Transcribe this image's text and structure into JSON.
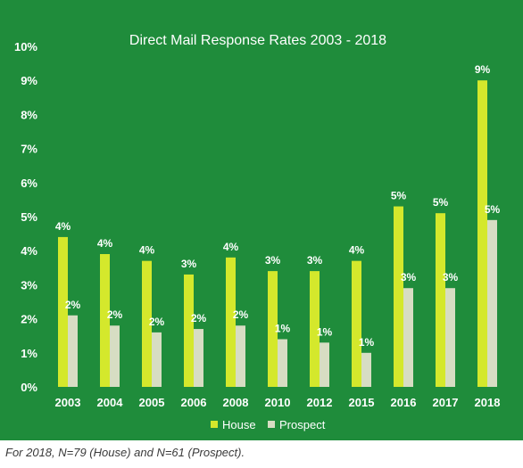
{
  "footnote": "For 2018, N=79 (House) and N=61 (Prospect).",
  "colors": {
    "background": "#1f8c3b",
    "house": "#d4e82c",
    "prospect": "#d7ddc3",
    "text": "#ffffff"
  },
  "chart_data": {
    "type": "bar",
    "title": "Direct Mail Response Rates 2003 - 2018",
    "xlabel": "",
    "ylabel": "",
    "ylim": [
      0,
      10
    ],
    "yticks": [
      "0%",
      "1%",
      "2%",
      "3%",
      "4%",
      "5%",
      "6%",
      "7%",
      "8%",
      "9%",
      "10%"
    ],
    "grid": false,
    "legend_position": "bottom",
    "categories": [
      "2003",
      "2004",
      "2005",
      "2006",
      "2008",
      "2010",
      "2012",
      "2015",
      "2016",
      "2017",
      "2018"
    ],
    "series": [
      {
        "name": "House",
        "color": "#d4e82c",
        "values": [
          4.4,
          3.9,
          3.7,
          3.3,
          3.8,
          3.4,
          3.4,
          3.7,
          5.3,
          5.1,
          9.0
        ],
        "labels": [
          "4%",
          "4%",
          "4%",
          "3%",
          "4%",
          "3%",
          "3%",
          "4%",
          "5%",
          "5%",
          "9%"
        ]
      },
      {
        "name": "Prospect",
        "color": "#d7ddc3",
        "values": [
          2.1,
          1.8,
          1.6,
          1.7,
          1.8,
          1.4,
          1.3,
          1.0,
          2.9,
          2.9,
          4.9
        ],
        "labels": [
          "2%",
          "2%",
          "2%",
          "2%",
          "2%",
          "1%",
          "1%",
          "1%",
          "3%",
          "3%",
          "5%"
        ]
      }
    ]
  }
}
